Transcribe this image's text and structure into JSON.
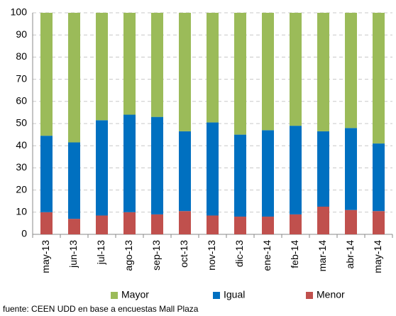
{
  "chart_data": {
    "type": "stacked_bar",
    "categories": [
      "may-13",
      "jun-13",
      "jul-13",
      "ago-13",
      "sep-13",
      "oct-13",
      "nov-13",
      "dic-13",
      "ene-14",
      "feb-14",
      "mar-14",
      "abr-14",
      "may-14"
    ],
    "series": [
      {
        "name": "Mayor",
        "color": "#9bbb59",
        "values": [
          55.5,
          58.5,
          48.5,
          46,
          47,
          53.5,
          49.5,
          55,
          53,
          51,
          53.5,
          52,
          59
        ]
      },
      {
        "name": "Igual",
        "color": "#0070c0",
        "values": [
          34.5,
          34.5,
          43,
          44,
          44,
          36,
          42,
          37,
          39,
          40,
          34,
          37,
          30.5
        ]
      },
      {
        "name": "Menor",
        "color": "#c0504d",
        "values": [
          10,
          7,
          8.5,
          10,
          9,
          10.5,
          8.5,
          8,
          8,
          9,
          12.5,
          11,
          10.5
        ]
      }
    ],
    "ylim": [
      0,
      100
    ],
    "yticks": [
      0,
      10,
      20,
      30,
      40,
      50,
      60,
      70,
      80,
      90,
      100
    ],
    "grid": true,
    "legend": "bottom",
    "source": "fuente: CEEN UDD en base a encuestas Mall Plaza"
  }
}
